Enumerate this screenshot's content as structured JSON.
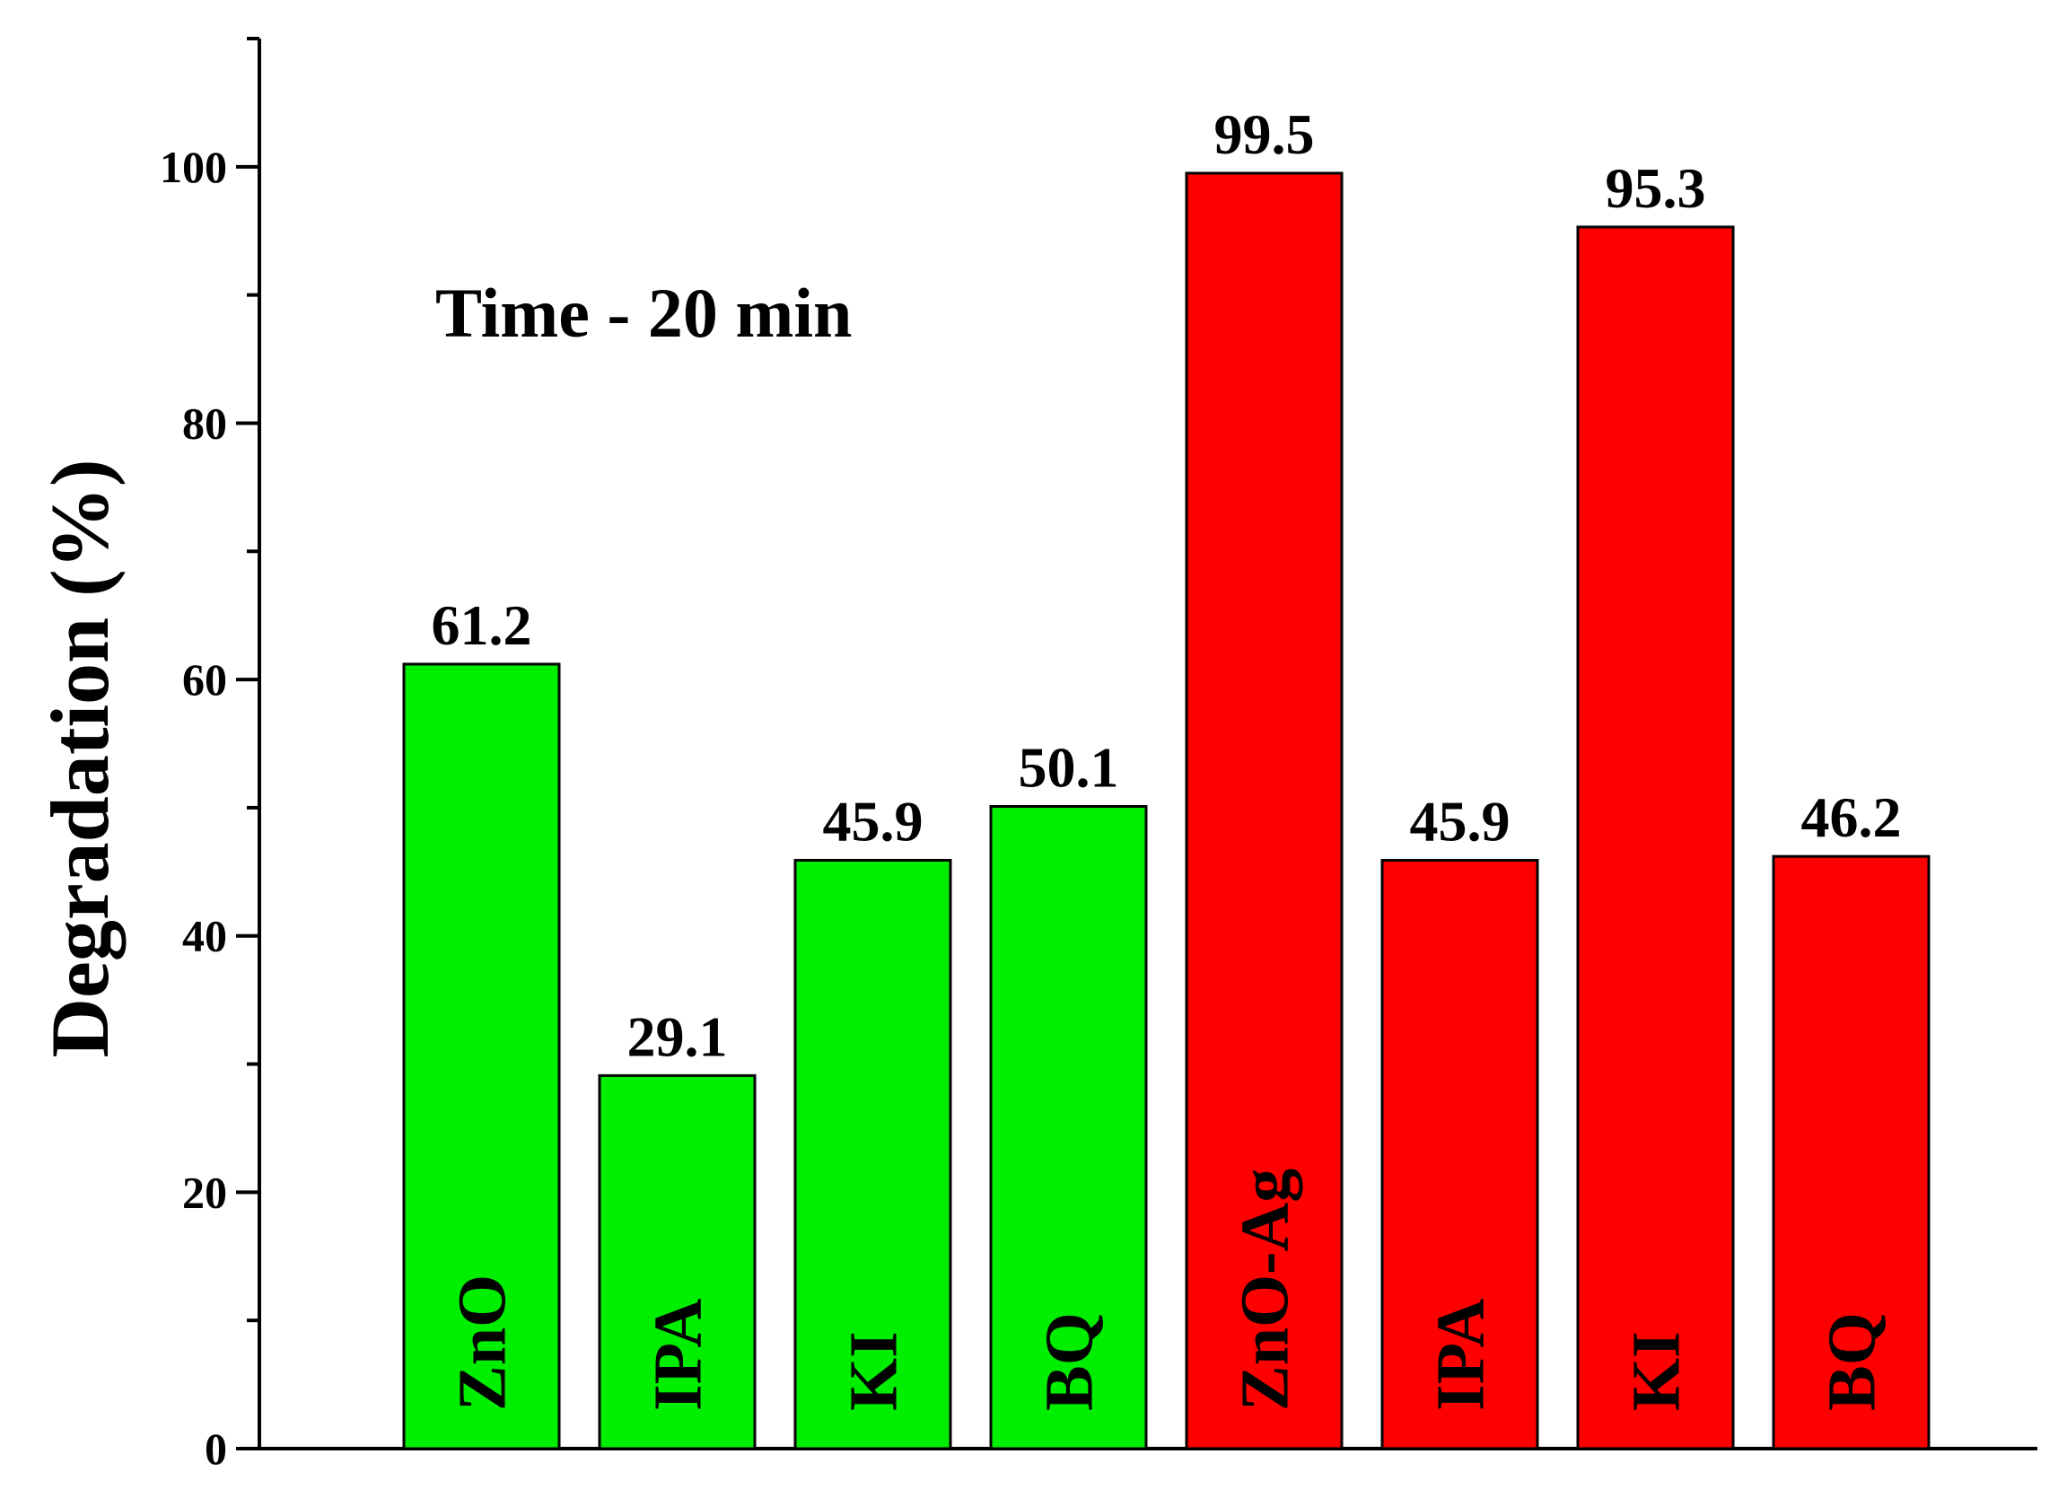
{
  "chart_data": {
    "type": "bar",
    "ylabel": "Degradation (%)",
    "annotation": "Time - 20 min",
    "ylim": [
      0,
      110
    ],
    "yticks": [
      0,
      20,
      40,
      60,
      80,
      100
    ],
    "ytick_labels": [
      "0",
      "20",
      "40",
      "60",
      "80",
      "100"
    ],
    "grid": false,
    "categories": [
      "ZnO",
      "IPA",
      "KI",
      "BQ",
      "ZnO-Ag",
      "IPA",
      "KI",
      "BQ"
    ],
    "values": [
      61.2,
      29.1,
      45.9,
      50.1,
      99.5,
      45.9,
      95.3,
      46.2
    ],
    "value_labels": [
      "61.2",
      "29.1",
      "45.9",
      "50.1",
      "99.5",
      "45.9",
      "95.3",
      "46.2"
    ],
    "bar_colors": [
      "#00ee00",
      "#00ee00",
      "#00ee00",
      "#00ee00",
      "#ff0000",
      "#ff0000",
      "#ff0000",
      "#ff0000"
    ]
  }
}
